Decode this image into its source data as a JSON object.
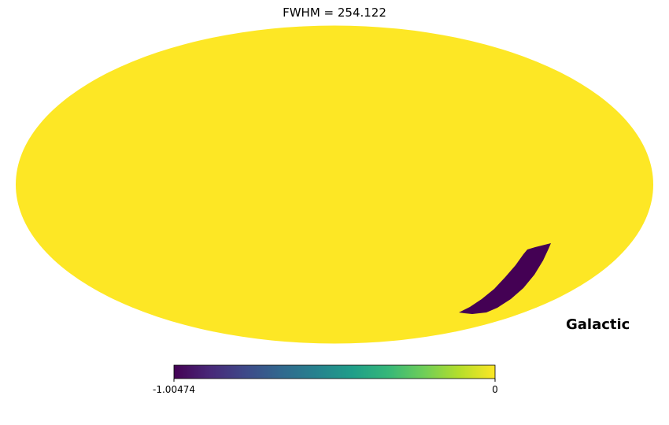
{
  "chart_data": {
    "type": "heatmap",
    "title": "FWHM = 254.122",
    "projection": "mollweide",
    "coordinate_frame": "Galactic",
    "background_value": 0,
    "region": {
      "description": "narrow arc in lower-right of sky map",
      "value": -1.00474
    },
    "colorbar": {
      "colormap": "viridis",
      "min": -1.00474,
      "max": 0,
      "tick_labels": [
        "-1.00474",
        "0"
      ],
      "colors": [
        "#440154",
        "#482878",
        "#3e4989",
        "#31688e",
        "#26828e",
        "#1f9e89",
        "#35b779",
        "#6ece58",
        "#b5de2b",
        "#fde725"
      ]
    }
  }
}
